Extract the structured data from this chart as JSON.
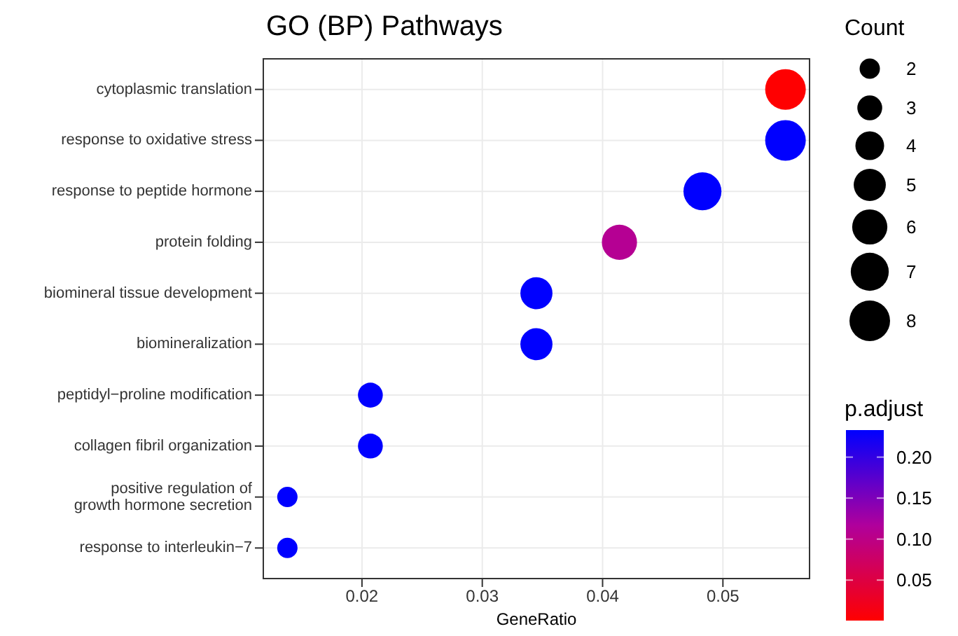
{
  "chart_data": {
    "type": "bubble",
    "title": "GO (BP) Pathways",
    "xlabel": "GeneRatio",
    "legend_title": "Count",
    "clabel": "p.adjust",
    "categories": [
      "cytoplasmic translation",
      "response to oxidative stress",
      "response to peptide hormone",
      "protein folding",
      "biomineral tissue development",
      "biomineralization",
      "peptidyl−proline modification",
      "collagen fibril organization",
      "positive regulation of growth hormone secretion",
      "response to interleukin−7"
    ],
    "orientation": "horizontal",
    "values": [
      0.0552,
      0.0552,
      0.0483,
      0.0414,
      0.0345,
      0.0345,
      0.0207,
      0.0207,
      0.0138,
      0.0138
    ],
    "sizes": [
      8,
      8,
      7,
      6,
      5,
      5,
      3,
      3,
      2,
      2
    ],
    "size_legend": [
      2,
      3,
      4,
      5,
      6,
      7,
      8
    ],
    "cvalues": [
      0.001,
      0.233,
      0.233,
      0.11,
      0.233,
      0.233,
      0.233,
      0.233,
      0.233,
      0.233
    ],
    "clim": [
      0.0006,
      0.233
    ],
    "cticks": [
      0.05,
      {
        "value": 0.1,
        "label": "0.10"
      },
      0.15,
      {
        "value": 0.2,
        "label": "0.20"
      }
    ],
    "xlim": [
      0.0118,
      0.0572
    ],
    "xticks": [
      0.02,
      0.03,
      0.04,
      0.05
    ],
    "grid": true
  }
}
